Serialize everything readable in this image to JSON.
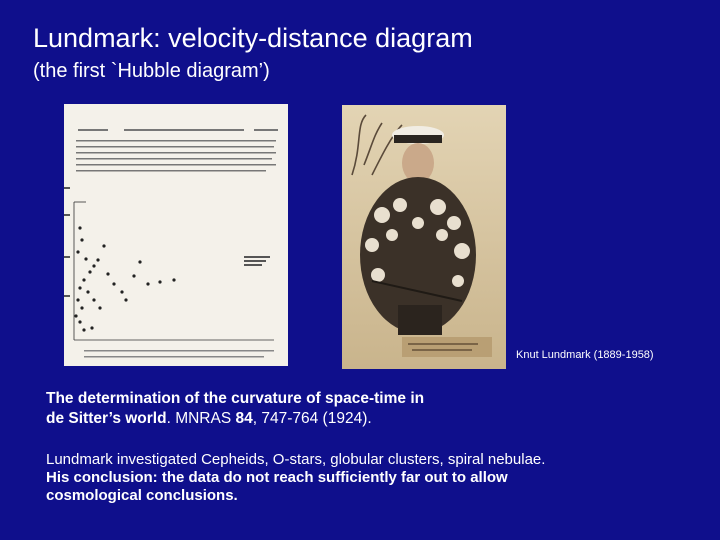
{
  "slide": {
    "title": "Lundmark: velocity-distance diagram",
    "subtitle": "(the first `Hubble diagram’)",
    "photo_caption": "Knut Lundmark (1889-1958)",
    "reference": {
      "title_line1": "The determination of the curvature of space-time in",
      "title_line2": "de Sitter’s world",
      "journal": ". MNRAS ",
      "volume": "84",
      "pages": ", 747-764 (1924)."
    },
    "body": {
      "line1": "Lundmark investigated Cepheids, O-stars, globular clusters, spiral nebulae.",
      "line2": "His conclusion: the data do not reach sufficiently far out to allow",
      "line3": "cosmological conclusions."
    }
  },
  "colors": {
    "background": "#0f0f8c",
    "text": "#ffffff",
    "paper": "#f4f1ea",
    "photo": "#d9c7a3"
  }
}
